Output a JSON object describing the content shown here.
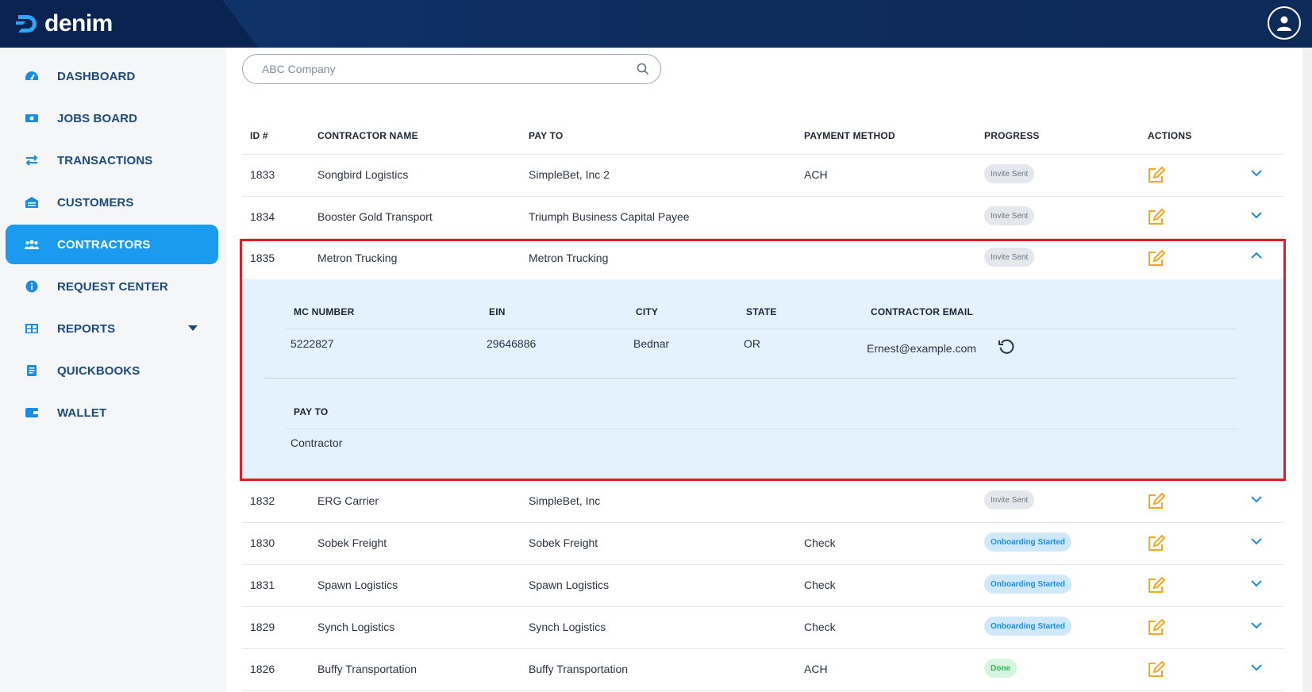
{
  "brand": {
    "name": "denim"
  },
  "sidebar": {
    "items": [
      {
        "label": "DASHBOARD",
        "icon": "dashboard-icon"
      },
      {
        "label": "JOBS BOARD",
        "icon": "jobs-board-icon"
      },
      {
        "label": "TRANSACTIONS",
        "icon": "transactions-icon"
      },
      {
        "label": "CUSTOMERS",
        "icon": "customers-icon"
      },
      {
        "label": "CONTRACTORS",
        "icon": "contractors-icon",
        "active": true
      },
      {
        "label": "REQUEST CENTER",
        "icon": "info-icon"
      },
      {
        "label": "REPORTS",
        "icon": "reports-icon",
        "has_dropdown": true
      },
      {
        "label": "QUICKBOOKS",
        "icon": "quickbooks-icon"
      },
      {
        "label": "WALLET",
        "icon": "wallet-icon"
      }
    ]
  },
  "search": {
    "placeholder": "ABC Company"
  },
  "table": {
    "columns": [
      "ID #",
      "CONTRACTOR NAME",
      "PAY TO",
      "PAYMENT METHOD",
      "PROGRESS",
      "ACTIONS"
    ],
    "rows_before": [
      {
        "id": "1833",
        "name": "Songbird Logistics",
        "pay_to": "SimpleBet, Inc 2",
        "method": "ACH",
        "progress": "Invite Sent",
        "status": "invite"
      },
      {
        "id": "1834",
        "name": "Booster Gold Transport",
        "pay_to": "Triumph Business Capital Payee",
        "method": "",
        "progress": "Invite Sent",
        "status": "invite"
      }
    ],
    "expanded": {
      "id": "1835",
      "name": "Metron Trucking",
      "pay_to": "Metron Trucking",
      "method": "",
      "progress": "Invite Sent",
      "detail_headers": [
        "MC NUMBER",
        "EIN",
        "CITY",
        "STATE",
        "CONTRACTOR EMAIL"
      ],
      "mc_number": "5222827",
      "ein": "29646886",
      "city": "Bednar",
      "state": "OR",
      "email": "Ernest@example.com",
      "pay_to_header": "PAY TO",
      "pay_to_value": "Contractor"
    },
    "rows_after": [
      {
        "id": "1832",
        "name": "ERG Carrier",
        "pay_to": "SimpleBet, Inc",
        "method": "",
        "progress": "Invite Sent",
        "status": "invite"
      },
      {
        "id": "1830",
        "name": "Sobek Freight",
        "pay_to": "Sobek Freight",
        "method": "Check",
        "progress": "Onboarding Started",
        "status": "onboard"
      },
      {
        "id": "1831",
        "name": "Spawn Logistics",
        "pay_to": "Spawn Logistics",
        "method": "Check",
        "progress": "Onboarding Started",
        "status": "onboard"
      },
      {
        "id": "1829",
        "name": "Synch Logistics",
        "pay_to": "Synch Logistics",
        "method": "Check",
        "progress": "Onboarding Started",
        "status": "onboard"
      },
      {
        "id": "1826",
        "name": "Buffy Transportation",
        "pay_to": "Buffy Transportation",
        "method": "ACH",
        "progress": "Done",
        "status": "done"
      }
    ]
  },
  "colors": {
    "accent": "#1a9bf0",
    "navy": "#0e2c5e",
    "edit": "#f5a623",
    "highlight": "#e8191f"
  }
}
